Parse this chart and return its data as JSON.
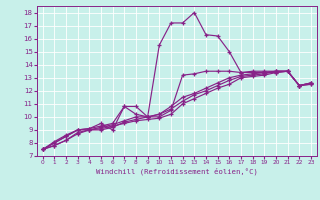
{
  "xlabel": "Windchill (Refroidissement éolien,°C)",
  "bg_color": "#c8f0ea",
  "line_color": "#882288",
  "grid_color": "#ffffff",
  "xlim": [
    -0.5,
    23.5
  ],
  "ylim": [
    7,
    18.5
  ],
  "xticks": [
    0,
    1,
    2,
    3,
    4,
    5,
    6,
    7,
    8,
    9,
    10,
    11,
    12,
    13,
    14,
    15,
    16,
    17,
    18,
    19,
    20,
    21,
    22,
    23
  ],
  "yticks": [
    7,
    8,
    9,
    10,
    11,
    12,
    13,
    14,
    15,
    16,
    17,
    18
  ],
  "line1_x": [
    0,
    1,
    2,
    3,
    4,
    5,
    6,
    7,
    8,
    9,
    10,
    11,
    12,
    13,
    14,
    15,
    16,
    17,
    18,
    19,
    20,
    21,
    22,
    23
  ],
  "line1_y": [
    7.5,
    7.8,
    8.2,
    8.8,
    9.0,
    9.1,
    9.3,
    9.5,
    9.7,
    9.8,
    9.9,
    10.2,
    11.0,
    11.4,
    11.8,
    12.2,
    12.5,
    13.0,
    13.1,
    13.2,
    13.4,
    13.5,
    12.4,
    12.5
  ],
  "line2_x": [
    0,
    1,
    2,
    3,
    4,
    5,
    6,
    7,
    8,
    9,
    10,
    11,
    12,
    13,
    14,
    15,
    16,
    17,
    18,
    19,
    20,
    21,
    22,
    23
  ],
  "line2_y": [
    7.5,
    7.8,
    8.2,
    8.7,
    9.0,
    9.0,
    9.2,
    9.6,
    9.8,
    10.0,
    10.2,
    10.6,
    11.2,
    11.7,
    12.0,
    12.4,
    12.8,
    13.1,
    13.2,
    13.3,
    13.5,
    13.5,
    12.4,
    12.6
  ],
  "line3_x": [
    0,
    1,
    2,
    3,
    4,
    5,
    6,
    7,
    8,
    9,
    10,
    11,
    12,
    13,
    14,
    15,
    16,
    17,
    18,
    19,
    20,
    21,
    22,
    23
  ],
  "line3_y": [
    7.5,
    8.1,
    8.6,
    9.0,
    9.1,
    9.5,
    9.0,
    10.8,
    10.8,
    10.0,
    15.5,
    17.2,
    17.2,
    18.0,
    16.3,
    16.2,
    15.0,
    13.4,
    13.4,
    13.4,
    13.4,
    13.5,
    12.4,
    12.6
  ],
  "line4_x": [
    0,
    1,
    2,
    3,
    4,
    5,
    6,
    7,
    8,
    9,
    10,
    11,
    12,
    13,
    14,
    15,
    16,
    17,
    18,
    19,
    20,
    21,
    22,
    23
  ],
  "line4_y": [
    7.5,
    8.0,
    8.5,
    9.0,
    9.1,
    9.3,
    9.5,
    10.8,
    10.2,
    10.0,
    10.0,
    10.5,
    13.2,
    13.3,
    13.5,
    13.5,
    13.5,
    13.4,
    13.5,
    13.5,
    13.5,
    13.5,
    12.4,
    12.6
  ],
  "line5_x": [
    0,
    1,
    2,
    3,
    4,
    5,
    6,
    7,
    8,
    9,
    10,
    11,
    12,
    13,
    14,
    15,
    16,
    17,
    18,
    19,
    20,
    21,
    22,
    23
  ],
  "line5_y": [
    7.5,
    8.0,
    8.5,
    9.0,
    9.0,
    9.2,
    9.4,
    9.7,
    10.0,
    10.0,
    10.2,
    10.8,
    11.5,
    11.8,
    12.2,
    12.6,
    13.0,
    13.2,
    13.3,
    13.4,
    13.5,
    13.5,
    12.4,
    12.5
  ]
}
